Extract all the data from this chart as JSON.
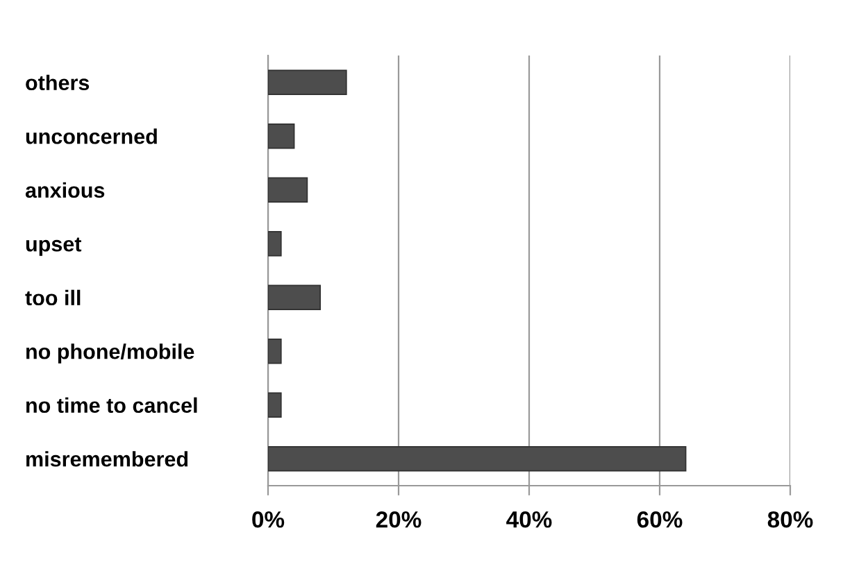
{
  "chart_data": {
    "type": "bar",
    "orientation": "horizontal",
    "categories": [
      "others",
      "unconcerned",
      "anxious",
      "upset",
      "too ill",
      "no phone/mobile",
      "no time to cancel",
      "misremembered"
    ],
    "values": [
      12,
      4,
      6,
      2,
      8,
      2,
      2,
      64
    ],
    "color": "#4d4d4d",
    "xlim": [
      0,
      80
    ],
    "xticks": [
      {
        "value": 0,
        "label": "0%"
      },
      {
        "value": 20,
        "label": "20%"
      },
      {
        "value": 40,
        "label": "40%"
      },
      {
        "value": 60,
        "label": "60%"
      },
      {
        "value": 80,
        "label": "80%"
      }
    ],
    "grid": "x"
  }
}
